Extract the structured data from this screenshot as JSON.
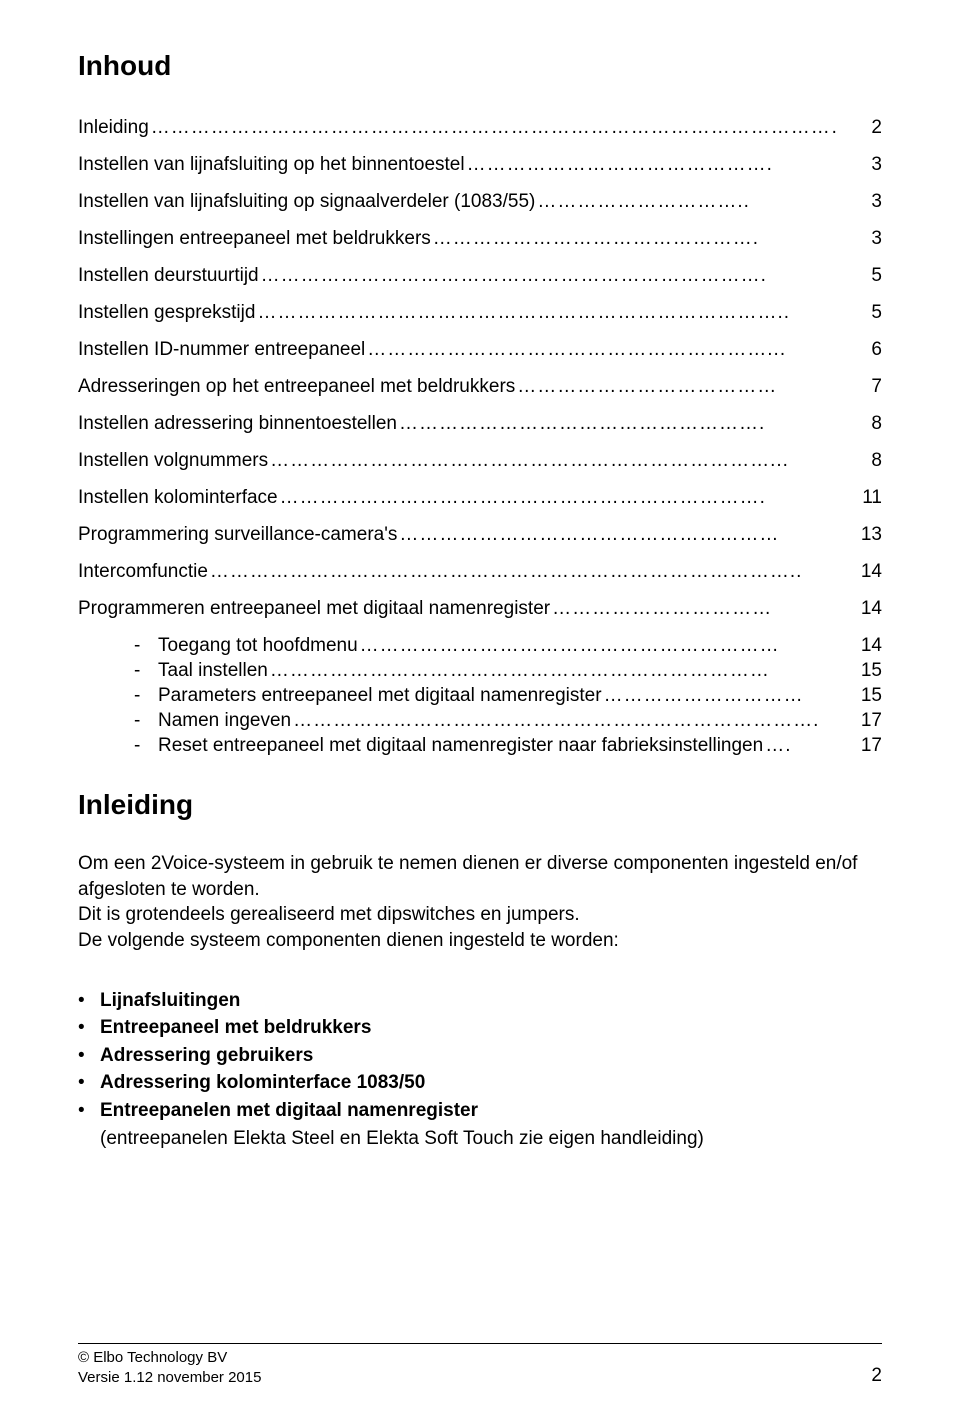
{
  "title": "Inhoud",
  "toc": [
    {
      "label": "Inleiding",
      "dots": "…………………………………………………………………………………………………",
      "page": "2"
    },
    {
      "label": "Instellen van lijnafsluiting op het binnentoestel",
      "dots": "……………………………………….",
      "page": "3"
    },
    {
      "label": "Instellen van lijnafsluiting op signaalverdeler (1083/55)",
      "dots": "…………………………..",
      "page": "3"
    },
    {
      "label": "Instellingen entreepaneel met beldrukkers",
      "dots": "………………………………………….",
      "page": "3"
    },
    {
      "label": "Instellen deurstuurtijd",
      "dots": "………………………………………………………………….",
      "page": "5"
    },
    {
      "label": "Instellen gesprekstijd",
      "dots": "……………………………………………………………………..",
      "page": "5"
    },
    {
      "label": "Instellen ID-nummer entreepaneel",
      "dots": "……………………………………………………...",
      "page": "6"
    },
    {
      "label": "Adresseringen op het entreepaneel met beldrukkers",
      "dots": "…………………………………",
      "page": "7"
    },
    {
      "label": "Instellen adressering binnentoestellen",
      "dots": "……………………………………………….",
      "page": "8"
    },
    {
      "label": "Instellen volgnummers",
      "dots": "…………………………………………………………………...",
      "page": "8"
    },
    {
      "label": "Instellen kolominterface",
      "dots": "……………………………………………………………….",
      "page": "11"
    },
    {
      "label": "Programmering surveillance-camera's",
      "dots": "…………………………………………………",
      "page": "13"
    },
    {
      "label": "Intercomfunctie",
      "dots": "……………………………………………………………………………..",
      "page": "14"
    },
    {
      "label": "Programmeren entreepaneel met digitaal namenregister",
      "dots": "……………………………",
      "page": "14"
    }
  ],
  "sub_toc": [
    {
      "label": "Toegang tot hoofdmenu",
      "dots": "………………………………………………………",
      "page": "14"
    },
    {
      "label": "Taal instellen",
      "dots": "…………………………………………………………………",
      "page": "15"
    },
    {
      "label": "Parameters entreepaneel met digitaal namenregister",
      "dots": "…………………………",
      "page": "15"
    },
    {
      "label": "Namen ingeven",
      "dots": "…………………………………………………………………….",
      "page": "17"
    },
    {
      "label": "Reset entreepaneel met digitaal namenregister naar fabrieksinstellingen",
      "dots": "….",
      "page": "17"
    }
  ],
  "section_title": "Inleiding",
  "body": {
    "p1": "Om een 2Voice-systeem in gebruik te nemen dienen er diverse componenten ingesteld en/of afgesloten te worden.",
    "p2": "Dit is grotendeels gerealiseerd met dipswitches en jumpers.",
    "p3": "De volgende systeem componenten dienen ingesteld te worden:"
  },
  "bullets": [
    {
      "text": "Lijnafsluitingen",
      "bold": true
    },
    {
      "text": "Entreepaneel met beldrukkers",
      "bold": true
    },
    {
      "text": "Adressering gebruikers",
      "bold": true
    },
    {
      "text": "Adressering kolominterface 1083/50",
      "bold": true
    },
    {
      "text": "Entreepanelen met digitaal namenregister",
      "bold": true
    },
    {
      "text": "(entreepanelen Elekta Steel en Elekta Soft Touch zie eigen handleiding)",
      "bold": false
    }
  ],
  "footer": {
    "line1": "© Elbo Technology BV",
    "line2": "Versie 1.12 november 2015",
    "page": "2"
  }
}
